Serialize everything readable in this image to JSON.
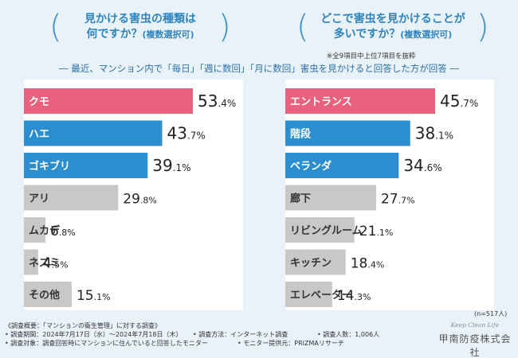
{
  "headings": {
    "left": {
      "line1": "見かける害虫の種類は",
      "line2": "何ですか？",
      "line2_small": "(複数選択可)"
    },
    "right": {
      "line1": "どこで害虫を見かけることが",
      "line2": "多いですか？",
      "line2_small": "(複数選択可)"
    }
  },
  "footnote": "※全9項目中上位7項目を抜粋",
  "subtitle": "― 最近、マンション内で「毎日」「週に数回」「月に数回」害虫を見かけると回答した方が回答 ―",
  "sample_size": "(n=517人)",
  "colors": {
    "pink": "#e8617e",
    "blue": "#2c8ecf",
    "gray": "#c8c8c8",
    "heading": "#2e84be",
    "background": "#eaf2f9"
  },
  "chart_data": [
    {
      "type": "bar",
      "orientation": "horizontal",
      "title": "見かける害虫の種類は何ですか？(複数選択可)",
      "unit": "%",
      "xlim": [
        0,
        53.4
      ],
      "categories": [
        "クモ",
        "ハエ",
        "ゴキブリ",
        "アリ",
        "ムカデ",
        "ネズミ",
        "その他"
      ],
      "values": [
        53.4,
        43.7,
        39.1,
        29.8,
        6.8,
        4.5,
        15.1
      ],
      "color_groups": [
        "pink",
        "blue",
        "blue",
        "gray",
        "gray",
        "gray",
        "gray"
      ]
    },
    {
      "type": "bar",
      "orientation": "horizontal",
      "title": "どこで害虫を見かけることが多いですか？(複数選択可)",
      "unit": "%",
      "xlim": [
        0,
        45.7
      ],
      "categories": [
        "エントランス",
        "階段",
        "ベランダ",
        "廊下",
        "リビングルーム",
        "キッチン",
        "エレベーター"
      ],
      "values": [
        45.7,
        38.1,
        34.6,
        27.7,
        21.1,
        18.4,
        14.3
      ],
      "color_groups": [
        "pink",
        "blue",
        "blue",
        "gray",
        "gray",
        "gray",
        "gray"
      ]
    }
  ],
  "survey": {
    "header": "《調査概要：「マンションの衛生管理」に対する調査》",
    "period": "• 調査期間：2024年7月17日（水）～2024年7月18日（木）",
    "method": "• 調査方法：インターネット調査",
    "count": "• 調査人数：1,006人",
    "target": "• 調査対象：調査回答時にマンションに住んでいると回答したモニター",
    "provider": "• モニター提供元：PRIZMAリサーチ"
  },
  "logo": {
    "tagline": "Keep Clean Life",
    "company": "甲南防疫株式会社"
  }
}
